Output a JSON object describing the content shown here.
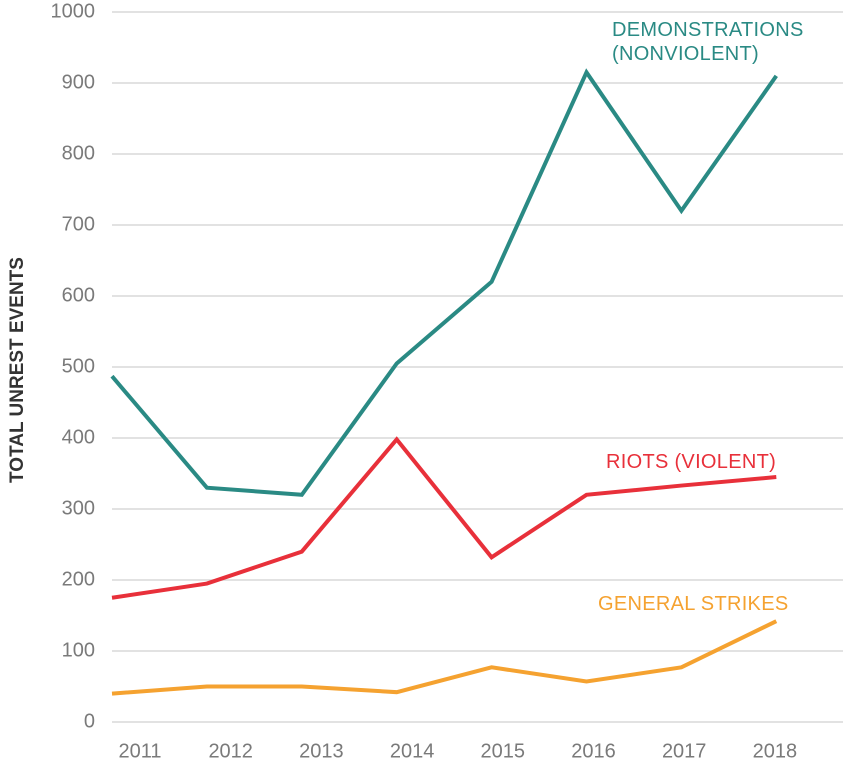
{
  "chart_data": {
    "type": "line",
    "ylabel": "TOTAL UNREST EVENTS",
    "categories": [
      "2011",
      "2012",
      "2013",
      "2014",
      "2015",
      "2016",
      "2017",
      "2018"
    ],
    "series": [
      {
        "name": "DEMONSTRATIONS (NONVIOLENT)",
        "color": "#2a8a84",
        "values": [
          487,
          330,
          320,
          505,
          620,
          915,
          720,
          910
        ]
      },
      {
        "name": "RIOTS (VIOLENT)",
        "color": "#e8303a",
        "values": [
          175,
          195,
          240,
          398,
          232,
          320,
          333,
          345
        ]
      },
      {
        "name": "GENERAL STRIKES",
        "color": "#f5a230",
        "values": [
          40,
          50,
          50,
          42,
          77,
          57,
          77,
          142
        ]
      }
    ],
    "ylim": [
      0,
      1000
    ],
    "yticks": [
      0,
      100,
      200,
      300,
      400,
      500,
      600,
      700,
      800,
      900,
      1000
    ],
    "grid": true
  }
}
